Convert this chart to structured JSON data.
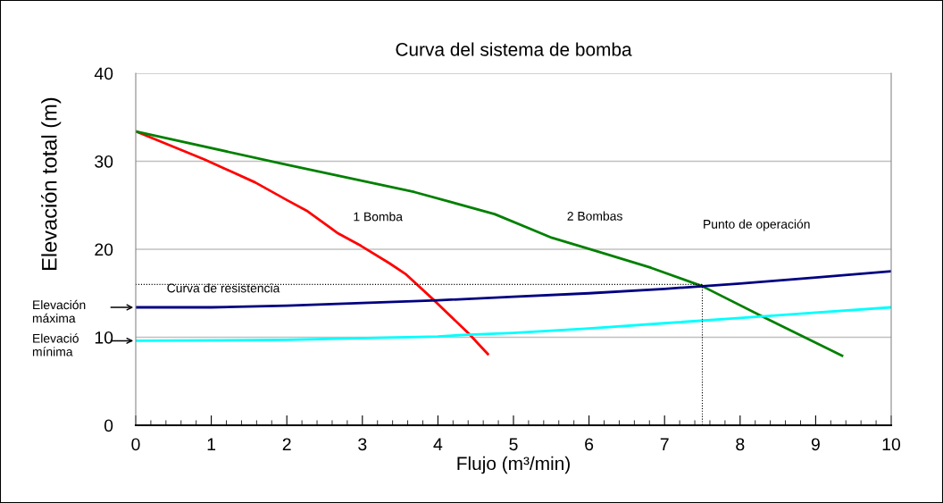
{
  "chart_data": {
    "type": "line",
    "title": "Curva del sistema de bomba",
    "xlabel": "Flujo (m³/min)",
    "ylabel": "Elevación total (m)",
    "xlim": [
      0,
      10
    ],
    "ylim": [
      0,
      40
    ],
    "xticks": [
      0,
      {
        "value": 0.2,
        "label": null
      },
      {
        "value": 0.4,
        "label": null
      },
      {
        "value": 0.6,
        "label": null
      },
      {
        "value": 0.8,
        "label": null
      },
      1,
      {
        "value": 1.2,
        "label": null
      },
      {
        "value": 1.4,
        "label": null
      },
      {
        "value": 1.6,
        "label": null
      },
      {
        "value": 1.8,
        "label": null
      },
      2,
      {
        "value": 2.2,
        "label": null
      },
      {
        "value": 2.4,
        "label": null
      },
      {
        "value": 2.6,
        "label": null
      },
      {
        "value": 2.8,
        "label": null
      },
      3,
      {
        "value": 3.2,
        "label": null
      },
      {
        "value": 3.4,
        "label": null
      },
      {
        "value": 3.6,
        "label": null
      },
      {
        "value": 3.8,
        "label": null
      },
      4,
      {
        "value": 4.2,
        "label": null
      },
      {
        "value": 4.4,
        "label": null
      },
      {
        "value": 4.6,
        "label": null
      },
      {
        "value": 4.8,
        "label": null
      },
      5,
      {
        "value": 5.2,
        "label": null
      },
      {
        "value": 5.4,
        "label": null
      },
      {
        "value": 5.6,
        "label": null
      },
      {
        "value": 5.8,
        "label": null
      },
      6,
      {
        "value": 6.2,
        "label": null
      },
      {
        "value": 6.4,
        "label": null
      },
      {
        "value": 6.6,
        "label": null
      },
      {
        "value": 6.8,
        "label": null
      },
      7,
      {
        "value": 7.2,
        "label": null
      },
      {
        "value": 7.4,
        "label": null
      },
      {
        "value": 7.6,
        "label": null
      },
      {
        "value": 7.8,
        "label": null
      },
      8,
      {
        "value": 8.2,
        "label": null
      },
      {
        "value": 8.4,
        "label": null
      },
      {
        "value": 8.6,
        "label": null
      },
      {
        "value": 8.8,
        "label": null
      },
      9,
      {
        "value": 9.2,
        "label": null
      },
      {
        "value": 9.4,
        "label": null
      },
      {
        "value": 9.6,
        "label": null
      },
      {
        "value": 9.8,
        "label": null
      },
      10
    ],
    "yticks": [
      0,
      10,
      20,
      30,
      40
    ],
    "grid": "y",
    "legend": false,
    "marker": "none",
    "series": [
      {
        "name": "1 Bomba",
        "color": "#ff0000",
        "x": [
          0,
          0.91,
          1.58,
          2.0,
          2.26,
          2.68,
          2.98,
          3.36,
          3.57,
          3.95,
          4.41,
          4.66
        ],
        "values": [
          33.4,
          30.2,
          27.6,
          25.6,
          24.4,
          21.8,
          20.4,
          18.4,
          17.2,
          14.2,
          10.4,
          8.1
        ]
      },
      {
        "name": "2 Bombas",
        "color": "#008000",
        "x": [
          0,
          2.0,
          3.69,
          4.75,
          5.51,
          6.13,
          6.82,
          7.5,
          8.33,
          9.35
        ],
        "values": [
          33.4,
          29.6,
          26.5,
          24.0,
          21.3,
          19.7,
          17.9,
          15.8,
          12.2,
          7.9
        ]
      },
      {
        "name": "Curva de resistencia",
        "color": "#000080",
        "x": [
          0,
          1,
          2,
          3,
          4,
          5,
          6,
          7,
          7.5,
          8,
          9,
          10
        ],
        "values": [
          13.4,
          13.4,
          13.6,
          13.9,
          14.2,
          14.6,
          15.0,
          15.5,
          15.8,
          16.1,
          16.8,
          17.5
        ]
      },
      {
        "color": "#00ffff",
        "x": [
          0,
          2,
          4,
          4.4,
          5,
          6,
          7,
          8,
          9,
          10
        ],
        "values": [
          9.6,
          9.7,
          10.1,
          10.3,
          10.5,
          11.0,
          11.6,
          12.2,
          12.8,
          13.4
        ]
      },
      {
        "color": "#000000",
        "line_style": "dotted",
        "x": [
          0,
          7.5
        ],
        "values": [
          16,
          16
        ]
      },
      {
        "color": "#000000",
        "line_style": "dotted",
        "x": [
          7.5,
          7.5
        ],
        "values": [
          16,
          0
        ]
      }
    ],
    "annotations": [
      "Punto de operación",
      "Elevación\nmáxima",
      "Elevació\nmínima"
    ]
  }
}
